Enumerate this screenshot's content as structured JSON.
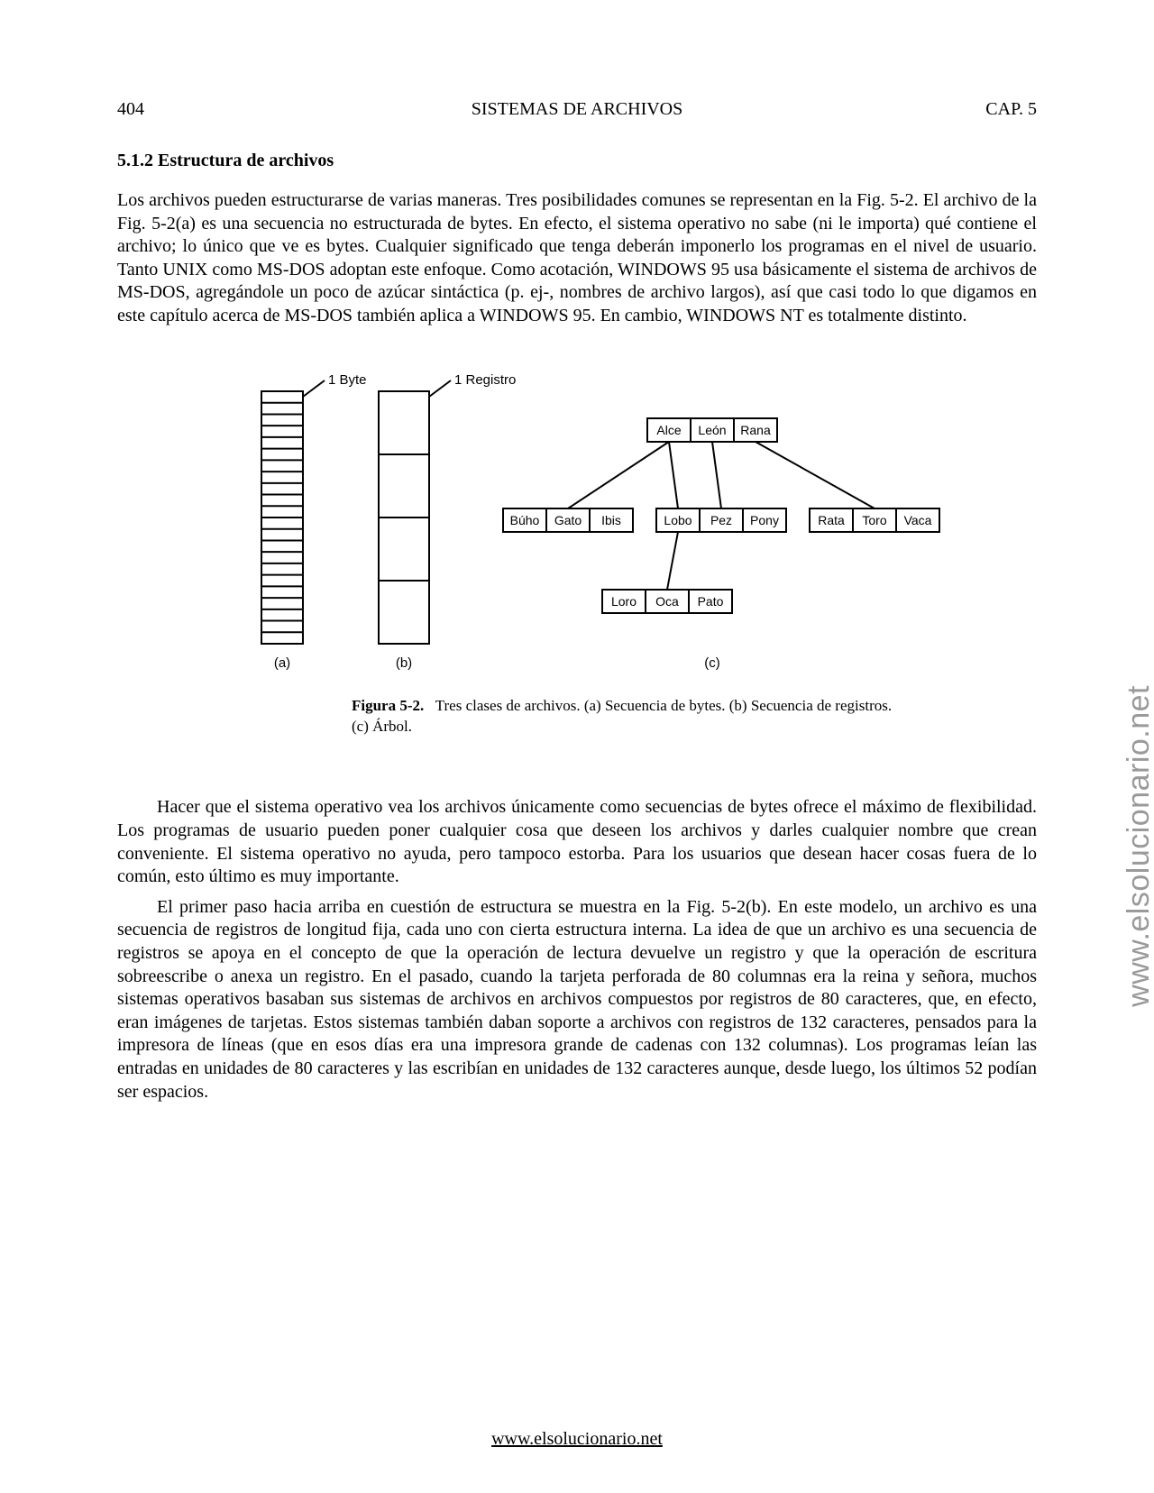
{
  "header": {
    "page_number": "404",
    "chapter_title": "SISTEMAS DE ARCHIVOS",
    "chapter_label": "CAP. 5"
  },
  "section_heading": "5.1.2 Estructura de archivos",
  "paragraphs": {
    "p1": "Los archivos pueden estructurarse de varias maneras. Tres posibilidades comunes se representan en la Fig. 5-2. El archivo de la Fig. 5-2(a) es una secuencia no estructurada de bytes. En efecto, el sistema operativo no sabe (ni le importa) qué contiene el archivo; lo único que ve es bytes. Cualquier significado que tenga deberán imponerlo los programas en el nivel de usuario. Tanto UNIX como MS-DOS adoptan este enfoque. Como acotación, WINDOWS 95 usa básicamente el sistema de archivos de MS-DOS, agregándole un poco de azúcar sintáctica (p. ej-, nombres de archivo largos), así que casi todo lo que digamos en este capítulo acerca de MS-DOS también aplica a WINDOWS 95. En cambio, WINDOWS NT es totalmente distinto.",
    "p2": "Hacer que el sistema operativo vea los archivos únicamente como secuencias de bytes ofrece el máximo de flexibilidad. Los programas de usuario pueden poner cualquier cosa que deseen los archivos y darles cualquier nombre que crean conveniente. El sistema operativo no ayuda, pero tampoco estorba. Para los usuarios que desean hacer cosas fuera de lo común, esto último es muy importante.",
    "p3": "El primer paso hacia arriba en cuestión de estructura se muestra en la Fig. 5-2(b). En este modelo, un archivo es una secuencia de registros de longitud fija, cada uno con cierta estructura interna. La idea de que un archivo es una secuencia de registros se apoya en el concepto de que la operación de lectura devuelve un registro y que la operación de escritura sobreescribe o anexa un registro. En el pasado, cuando la tarjeta perforada de 80 columnas era la reina y señora, muchos sistemas operativos basaban sus sistemas de archivos en archivos compuestos por registros de 80 caracteres, que, en efecto, eran imágenes de tarjetas. Estos sistemas también daban soporte a archivos con registros de 132 caracteres, pensados para la impresora de líneas (que en esos días era una impresora grande de cadenas con 132 columnas). Los programas leían las entradas en unidades de 80 caracteres y las escribían en unidades de 132 caracteres aunque, desde luego, los últimos 52 podían ser espacios."
  },
  "figure": {
    "label_byte": "1 Byte",
    "label_record": "1 Registro",
    "sub_a": "(a)",
    "sub_b": "(b)",
    "sub_c": "(c)",
    "caption_bold": "Figura 5-2.",
    "caption_line1": "Tres clases de archivos. (a) Secuencia de bytes. (b) Secuencia de registros.",
    "caption_line2": "(c) Árbol.",
    "byte_count": 22,
    "record_count": 4,
    "tree": {
      "root": [
        "Alce",
        "León",
        "Rana"
      ],
      "mid_left": [
        "Búho",
        "Gato",
        "Ibis"
      ],
      "mid_center": [
        "Lobo",
        "Pez",
        "Pony"
      ],
      "mid_right": [
        "Rata",
        "Toro",
        "Vaca"
      ],
      "bottom": [
        "Loro",
        "Oca",
        "Pato"
      ]
    },
    "colors": {
      "stroke": "#000000",
      "fill": "#ffffff",
      "text": "#000000"
    },
    "stroke_width": 2,
    "font_size_labels": 15,
    "font_size_small": 14
  },
  "watermark": "www.elsolucionario.net",
  "footer_link": "www.elsolucionario.net"
}
